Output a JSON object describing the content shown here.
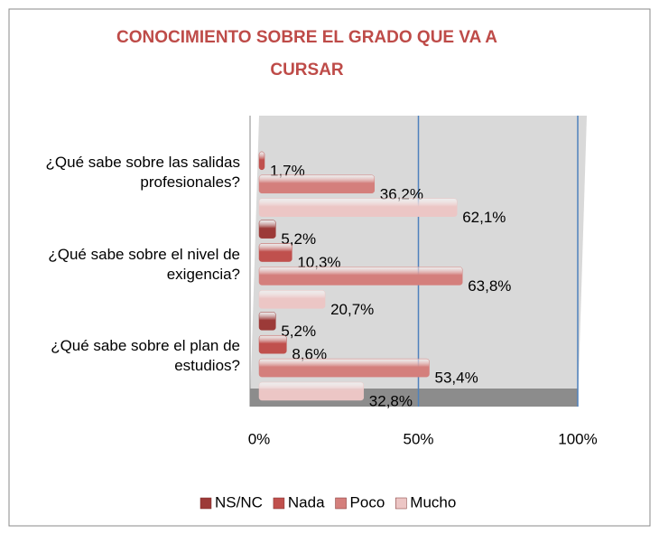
{
  "chart_data": {
    "type": "bar",
    "orientation": "horizontal",
    "title": "CONOCIMIENTO SOBRE EL GRADO QUE VA A CURSAR",
    "categories": [
      "¿Qué sabe sobre el plan de estudios?",
      "¿Qué sabe sobre el nivel de exigencia?",
      "¿Qué sabe sobre las salidas profesionales?"
    ],
    "series": [
      {
        "name": "NS/NC",
        "color": "#9c3a38",
        "values": [
          5.2,
          5.2,
          null
        ],
        "value_labels": [
          "5,2%",
          "5,2%",
          null
        ]
      },
      {
        "name": "Nada",
        "color": "#c0504d",
        "values": [
          8.6,
          10.3,
          1.7
        ],
        "value_labels": [
          "8,6%",
          "10,3%",
          "1,7%"
        ]
      },
      {
        "name": "Poco",
        "color": "#d47f7c",
        "values": [
          53.4,
          63.8,
          36.2
        ],
        "value_labels": [
          "53,4%",
          "63,8%",
          "36,2%"
        ]
      },
      {
        "name": "Mucho",
        "color": "#ecc6c5",
        "values": [
          32.8,
          20.7,
          62.1
        ],
        "value_labels": [
          "32,8%",
          "20,7%",
          "62,1%"
        ]
      }
    ],
    "xlim": [
      0,
      100
    ],
    "xticks": [
      {
        "value": 0,
        "label": "0%"
      },
      {
        "value": 50,
        "label": "50%"
      },
      {
        "value": 100,
        "label": "100%"
      }
    ],
    "grid": true,
    "legend": "bottom"
  }
}
